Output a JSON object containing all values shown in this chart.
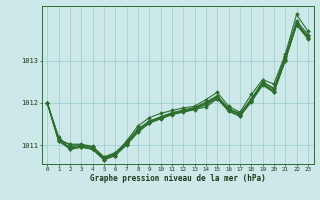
{
  "xlabel": "Graphe pression niveau de la mer (hPa)",
  "bg_color": "#cce8e8",
  "grid_color": "#99cccc",
  "line_color": "#2d6e2d",
  "xlim": [
    -0.5,
    23.5
  ],
  "ylim": [
    1010.55,
    1014.3
  ],
  "yticks": [
    1011,
    1012,
    1013
  ],
  "xticks": [
    0,
    1,
    2,
    3,
    4,
    5,
    6,
    7,
    8,
    9,
    10,
    11,
    12,
    13,
    14,
    15,
    16,
    17,
    18,
    19,
    20,
    21,
    22,
    23
  ],
  "series": [
    [
      1012.0,
      1011.2,
      1010.9,
      1010.95,
      1010.9,
      1010.7,
      1010.75,
      1011.05,
      1011.35,
      1011.55,
      1011.65,
      1011.75,
      1011.8,
      1011.85,
      1011.9,
      1012.1,
      1011.85,
      1011.75,
      1012.05,
      1012.45,
      1012.25,
      1013.0,
      1013.85,
      1013.55
    ],
    [
      1012.0,
      1011.15,
      1011.0,
      1011.0,
      1010.95,
      1010.7,
      1010.8,
      1011.05,
      1011.35,
      1011.55,
      1011.65,
      1011.75,
      1011.82,
      1011.88,
      1012.0,
      1012.15,
      1011.85,
      1011.72,
      1012.08,
      1012.48,
      1012.32,
      1013.08,
      1013.9,
      1013.58
    ],
    [
      1012.0,
      1011.1,
      1010.95,
      1011.0,
      1010.93,
      1010.68,
      1010.78,
      1011.03,
      1011.33,
      1011.53,
      1011.63,
      1011.73,
      1011.8,
      1011.86,
      1011.98,
      1012.13,
      1011.82,
      1011.7,
      1012.05,
      1012.45,
      1012.28,
      1013.05,
      1013.88,
      1013.55
    ],
    [
      1012.0,
      1011.1,
      1010.92,
      1010.98,
      1010.9,
      1010.65,
      1010.75,
      1011.0,
      1011.3,
      1011.52,
      1011.62,
      1011.72,
      1011.78,
      1011.84,
      1011.96,
      1012.1,
      1011.8,
      1011.68,
      1012.02,
      1012.42,
      1012.25,
      1013.02,
      1013.85,
      1013.52
    ],
    [
      1012.0,
      1011.12,
      1011.02,
      1011.02,
      1010.97,
      1010.72,
      1010.82,
      1011.08,
      1011.38,
      1011.57,
      1011.67,
      1011.77,
      1011.83,
      1011.89,
      1012.02,
      1012.17,
      1011.87,
      1011.74,
      1012.1,
      1012.5,
      1012.35,
      1013.12,
      1013.95,
      1013.62
    ]
  ],
  "series_high": [
    1012.0,
    1011.1,
    1010.9,
    1010.95,
    1010.9,
    1010.65,
    1010.75,
    1011.1,
    1011.45,
    1011.65,
    1011.75,
    1011.82,
    1011.88,
    1011.92,
    1012.08,
    1012.25,
    1011.92,
    1011.78,
    1012.2,
    1012.55,
    1012.45,
    1013.15,
    1014.1,
    1013.7
  ]
}
